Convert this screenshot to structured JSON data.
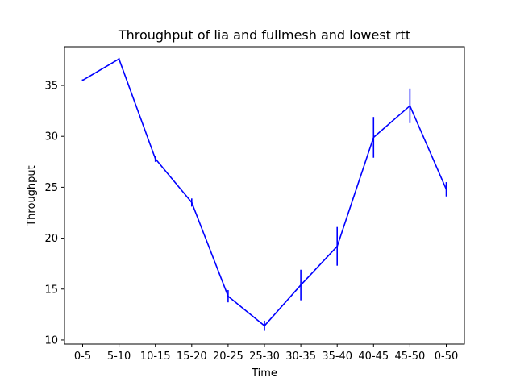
{
  "chart_data": {
    "type": "line",
    "title": "Throughput of lia and fullmesh and lowest rtt",
    "xlabel": "Time",
    "ylabel": "Throughput",
    "categories": [
      "0-5",
      "5-10",
      "10-15",
      "15-20",
      "20-25",
      "25-30",
      "30-35",
      "35-40",
      "40-45",
      "45-50",
      "0-50"
    ],
    "series": [
      {
        "values": [
          35.5,
          37.6,
          27.8,
          23.5,
          14.3,
          11.4,
          15.4,
          19.2,
          29.9,
          33.0,
          24.8
        ],
        "errors": [
          0.1,
          0.1,
          0.3,
          0.4,
          0.6,
          0.5,
          1.5,
          1.9,
          2.0,
          1.7,
          0.7
        ],
        "color": "#0000ff"
      }
    ],
    "yticks": [
      10,
      15,
      20,
      25,
      30,
      35
    ],
    "ylim": [
      9.6,
      38.8
    ],
    "grid": false
  }
}
